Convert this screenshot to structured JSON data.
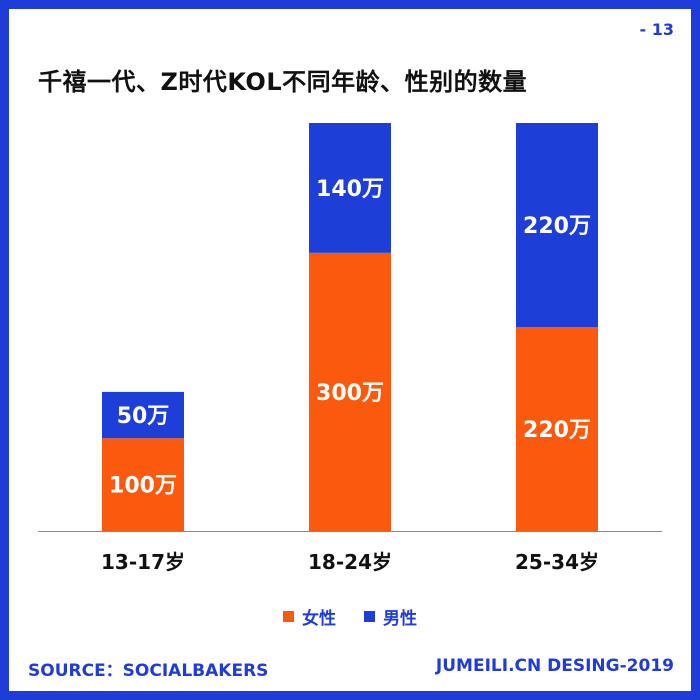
{
  "page_number": "- 13",
  "title": "千禧一代、Z时代KOL不同年龄、性别的数量",
  "footer": {
    "source": "SOURCE：SOCIALBAKERS",
    "credit": "JUMEILI.CN DESING-2019"
  },
  "colors": {
    "female": "#fb5a0e",
    "male": "#1e3ed8",
    "accent": "#1f3bd8"
  },
  "chart_data": {
    "type": "bar",
    "stacked": true,
    "title": "千禧一代、Z时代KOL不同年龄、性别的数量",
    "unit": "万",
    "categories": [
      "13-17岁",
      "18-24岁",
      "25-34岁"
    ],
    "series": [
      {
        "name": "女性",
        "values": [
          100,
          300,
          220
        ],
        "labels": [
          "100万",
          "300万",
          "220万"
        ]
      },
      {
        "name": "男性",
        "values": [
          50,
          140,
          220
        ],
        "labels": [
          "50万",
          "140万",
          "220万"
        ]
      }
    ],
    "ylim": [
      0,
      440
    ],
    "grid": false,
    "legend": "bottom-center"
  }
}
